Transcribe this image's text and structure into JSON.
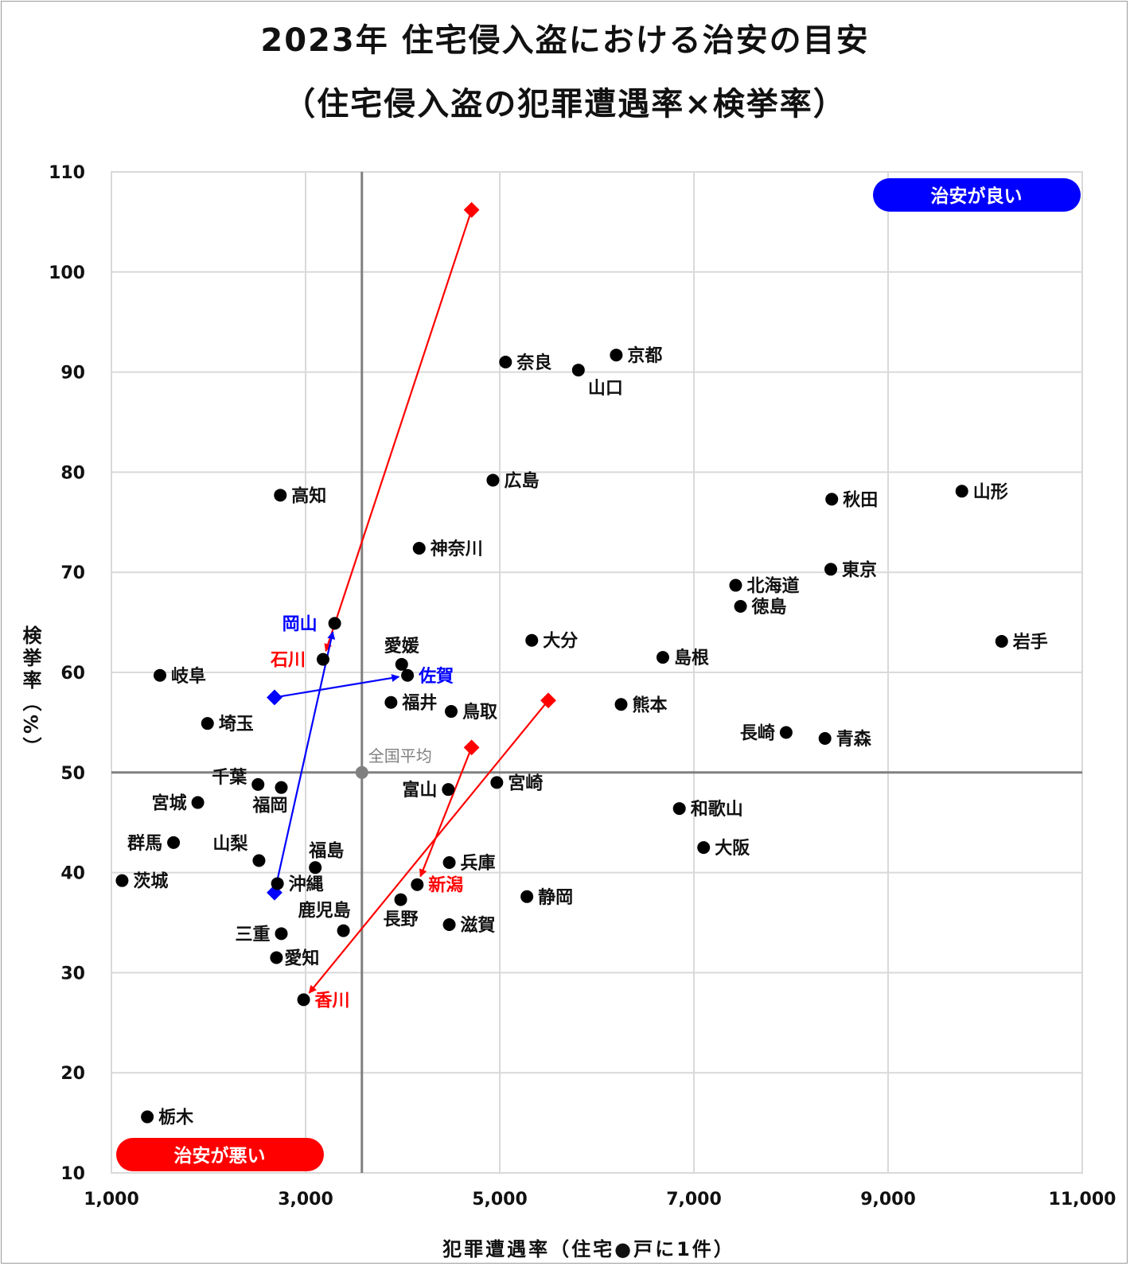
{
  "chart_data": {
    "type": "scatter",
    "title": "2023年 住宅侵入盗における治安の目安",
    "subtitle": "（住宅侵入盗の犯罪遭遇率×検挙率）",
    "xlabel": "犯罪遭遇率（住宅●戸に1件）",
    "ylabel": "検挙率（%）",
    "xlim": [
      1000,
      11000
    ],
    "ylim": [
      10,
      110
    ],
    "xticks": [
      1000,
      3000,
      5000,
      7000,
      9000,
      11000
    ],
    "xtick_labels": [
      "1,000",
      "3,000",
      "5,000",
      "7,000",
      "9,000",
      "11,000"
    ],
    "yticks": [
      10,
      20,
      30,
      40,
      50,
      60,
      70,
      80,
      90,
      100,
      110
    ],
    "ytick_labels": [
      "10",
      "20",
      "30",
      "40",
      "50",
      "60",
      "70",
      "80",
      "90",
      "100",
      "110"
    ],
    "grid": true,
    "average": {
      "label": "全国平均",
      "x": 3580,
      "y": 50
    },
    "good_label": "治安が良い",
    "bad_label": "治安が悪い",
    "points": [
      {
        "name": "京都",
        "x": 6200,
        "y": 91.7
      },
      {
        "name": "奈良",
        "x": 5060,
        "y": 91.0
      },
      {
        "name": "山口",
        "x": 5810,
        "y": 90.2
      },
      {
        "name": "広島",
        "x": 4930,
        "y": 79.2
      },
      {
        "name": "高知",
        "x": 2740,
        "y": 77.7
      },
      {
        "name": "秋田",
        "x": 8420,
        "y": 77.3
      },
      {
        "name": "山形",
        "x": 9760,
        "y": 78.1
      },
      {
        "name": "神奈川",
        "x": 4170,
        "y": 72.4
      },
      {
        "name": "東京",
        "x": 8410,
        "y": 70.3
      },
      {
        "name": "北海道",
        "x": 7430,
        "y": 68.7
      },
      {
        "name": "徳島",
        "x": 7480,
        "y": 66.6
      },
      {
        "name": "岡山",
        "x": 3300,
        "y": 64.9
      },
      {
        "name": "大分",
        "x": 5330,
        "y": 63.2
      },
      {
        "name": "岩手",
        "x": 10170,
        "y": 63.1
      },
      {
        "name": "石川",
        "x": 3180,
        "y": 61.3
      },
      {
        "name": "愛媛",
        "x": 3990,
        "y": 60.8
      },
      {
        "name": "島根",
        "x": 6680,
        "y": 61.5
      },
      {
        "name": "佐賀",
        "x": 4050,
        "y": 59.7
      },
      {
        "name": "岐阜",
        "x": 1500,
        "y": 59.7
      },
      {
        "name": "福井",
        "x": 3880,
        "y": 57.0
      },
      {
        "name": "熊本",
        "x": 6250,
        "y": 56.8
      },
      {
        "name": "鳥取",
        "x": 4500,
        "y": 56.1
      },
      {
        "name": "埼玉",
        "x": 1990,
        "y": 54.9
      },
      {
        "name": "長崎",
        "x": 7950,
        "y": 54.0
      },
      {
        "name": "青森",
        "x": 8350,
        "y": 53.4
      },
      {
        "name": "宮崎",
        "x": 4970,
        "y": 49.0
      },
      {
        "name": "千葉",
        "x": 2510,
        "y": 48.8
      },
      {
        "name": "福岡",
        "x": 2750,
        "y": 48.5
      },
      {
        "name": "富山",
        "x": 4470,
        "y": 48.3
      },
      {
        "name": "宮城",
        "x": 1890,
        "y": 47.0
      },
      {
        "name": "和歌山",
        "x": 6850,
        "y": 46.4
      },
      {
        "name": "群馬",
        "x": 1640,
        "y": 43.0
      },
      {
        "name": "大阪",
        "x": 7100,
        "y": 42.5
      },
      {
        "name": "山梨",
        "x": 2520,
        "y": 41.2
      },
      {
        "name": "兵庫",
        "x": 4480,
        "y": 41.0
      },
      {
        "name": "福島",
        "x": 3100,
        "y": 40.5
      },
      {
        "name": "茨城",
        "x": 1110,
        "y": 39.2
      },
      {
        "name": "沖縄",
        "x": 2710,
        "y": 38.9
      },
      {
        "name": "新潟",
        "x": 4150,
        "y": 38.8
      },
      {
        "name": "静岡",
        "x": 5280,
        "y": 37.6
      },
      {
        "name": "長野",
        "x": 3980,
        "y": 37.3
      },
      {
        "name": "滋賀",
        "x": 4480,
        "y": 34.8
      },
      {
        "name": "鹿児島",
        "x": 3390,
        "y": 34.2
      },
      {
        "name": "三重",
        "x": 2750,
        "y": 33.9
      },
      {
        "name": "愛知",
        "x": 2700,
        "y": 31.5
      },
      {
        "name": "香川",
        "x": 2980,
        "y": 27.3
      },
      {
        "name": "栃木",
        "x": 1370,
        "y": 15.6
      }
    ],
    "arrows": [
      {
        "to": "石川",
        "color": "#ff0000",
        "from": {
          "x": 4710,
          "y": 106.2
        }
      },
      {
        "to": "岡山",
        "color": "#0000ff",
        "from": {
          "x": 2680,
          "y": 38.0
        }
      },
      {
        "to": "佐賀",
        "color": "#0000ff",
        "from": {
          "x": 2680,
          "y": 57.5
        }
      },
      {
        "to": "新潟",
        "color": "#ff0000",
        "from": {
          "x": 4710,
          "y": 52.5
        }
      },
      {
        "to": "香川",
        "color": "#ff0000",
        "from": {
          "x": 5500,
          "y": 57.2
        }
      }
    ],
    "colors": {
      "red": "#ff0000",
      "blue": "#0000ff",
      "point": "#000000",
      "average": "#808080",
      "grid": "#d9d9d9",
      "avg_line": "#808080"
    }
  }
}
